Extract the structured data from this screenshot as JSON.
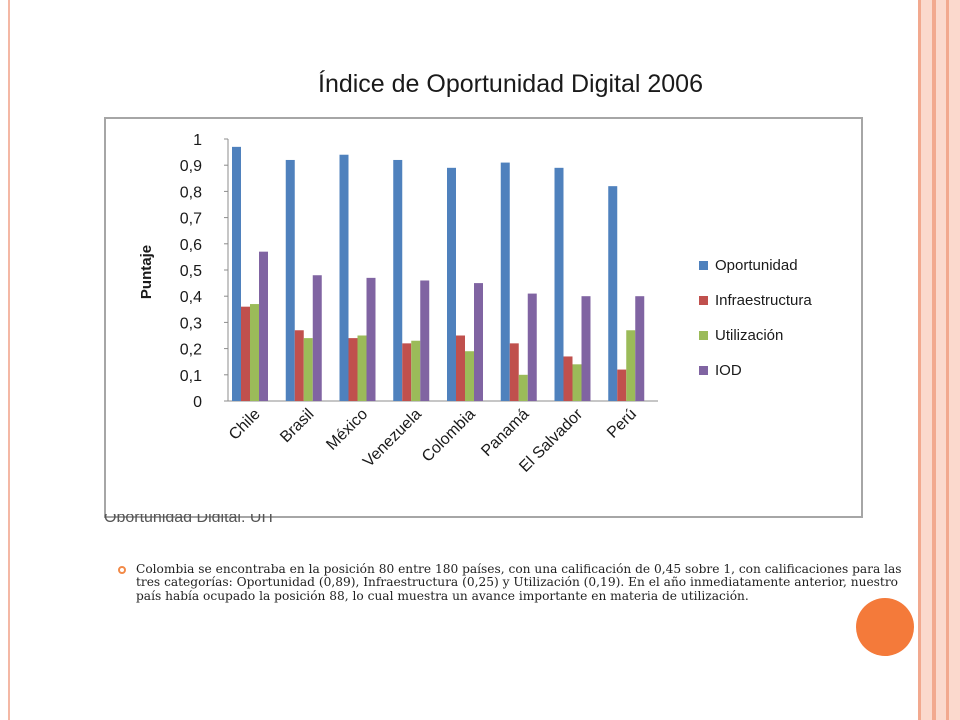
{
  "slide": {
    "title": "Índice de Oportunidad Digital 2006",
    "source_cut": "Oportunidad Digital, UIT",
    "body_text": "Colombia se encontraba en la posición 80 entre 180 países, con una calificación de 0,45 sobre 1, con calificaciones para las tres categorías: Oportunidad (0,89), Infraestructura (0,25) y Utilización (0,19). En el año inmediatamente anterior, nuestro país había ocupado la posición 88, lo cual muestra un avance importante en materia de utilización.",
    "accent_color": "#f47a3a"
  },
  "chart_data": {
    "type": "bar",
    "title": "",
    "xlabel": "",
    "ylabel": "Puntaje",
    "ylim": [
      0,
      1
    ],
    "yticks": [
      "0",
      "0,1",
      "0,2",
      "0,3",
      "0,4",
      "0,5",
      "0,6",
      "0,7",
      "0,8",
      "0,9",
      "1"
    ],
    "categories": [
      "Chile",
      "Brasil",
      "México",
      "Venezuela",
      "Colombia",
      "Panamá",
      "El Salvador",
      "Perú"
    ],
    "series": [
      {
        "name": "Oportunidad",
        "color": "#4f81bd",
        "values": [
          0.97,
          0.92,
          0.94,
          0.92,
          0.89,
          0.91,
          0.89,
          0.82
        ]
      },
      {
        "name": "Infraestructura",
        "color": "#c0504d",
        "values": [
          0.36,
          0.27,
          0.24,
          0.22,
          0.25,
          0.22,
          0.17,
          0.12
        ]
      },
      {
        "name": "Utilización",
        "color": "#9bbb59",
        "values": [
          0.37,
          0.24,
          0.25,
          0.23,
          0.19,
          0.1,
          0.14,
          0.27
        ]
      },
      {
        "name": "IOD",
        "color": "#8064a2",
        "values": [
          0.57,
          0.48,
          0.47,
          0.46,
          0.45,
          0.41,
          0.4,
          0.4
        ]
      }
    ],
    "legend_position": "right",
    "grid": false
  }
}
